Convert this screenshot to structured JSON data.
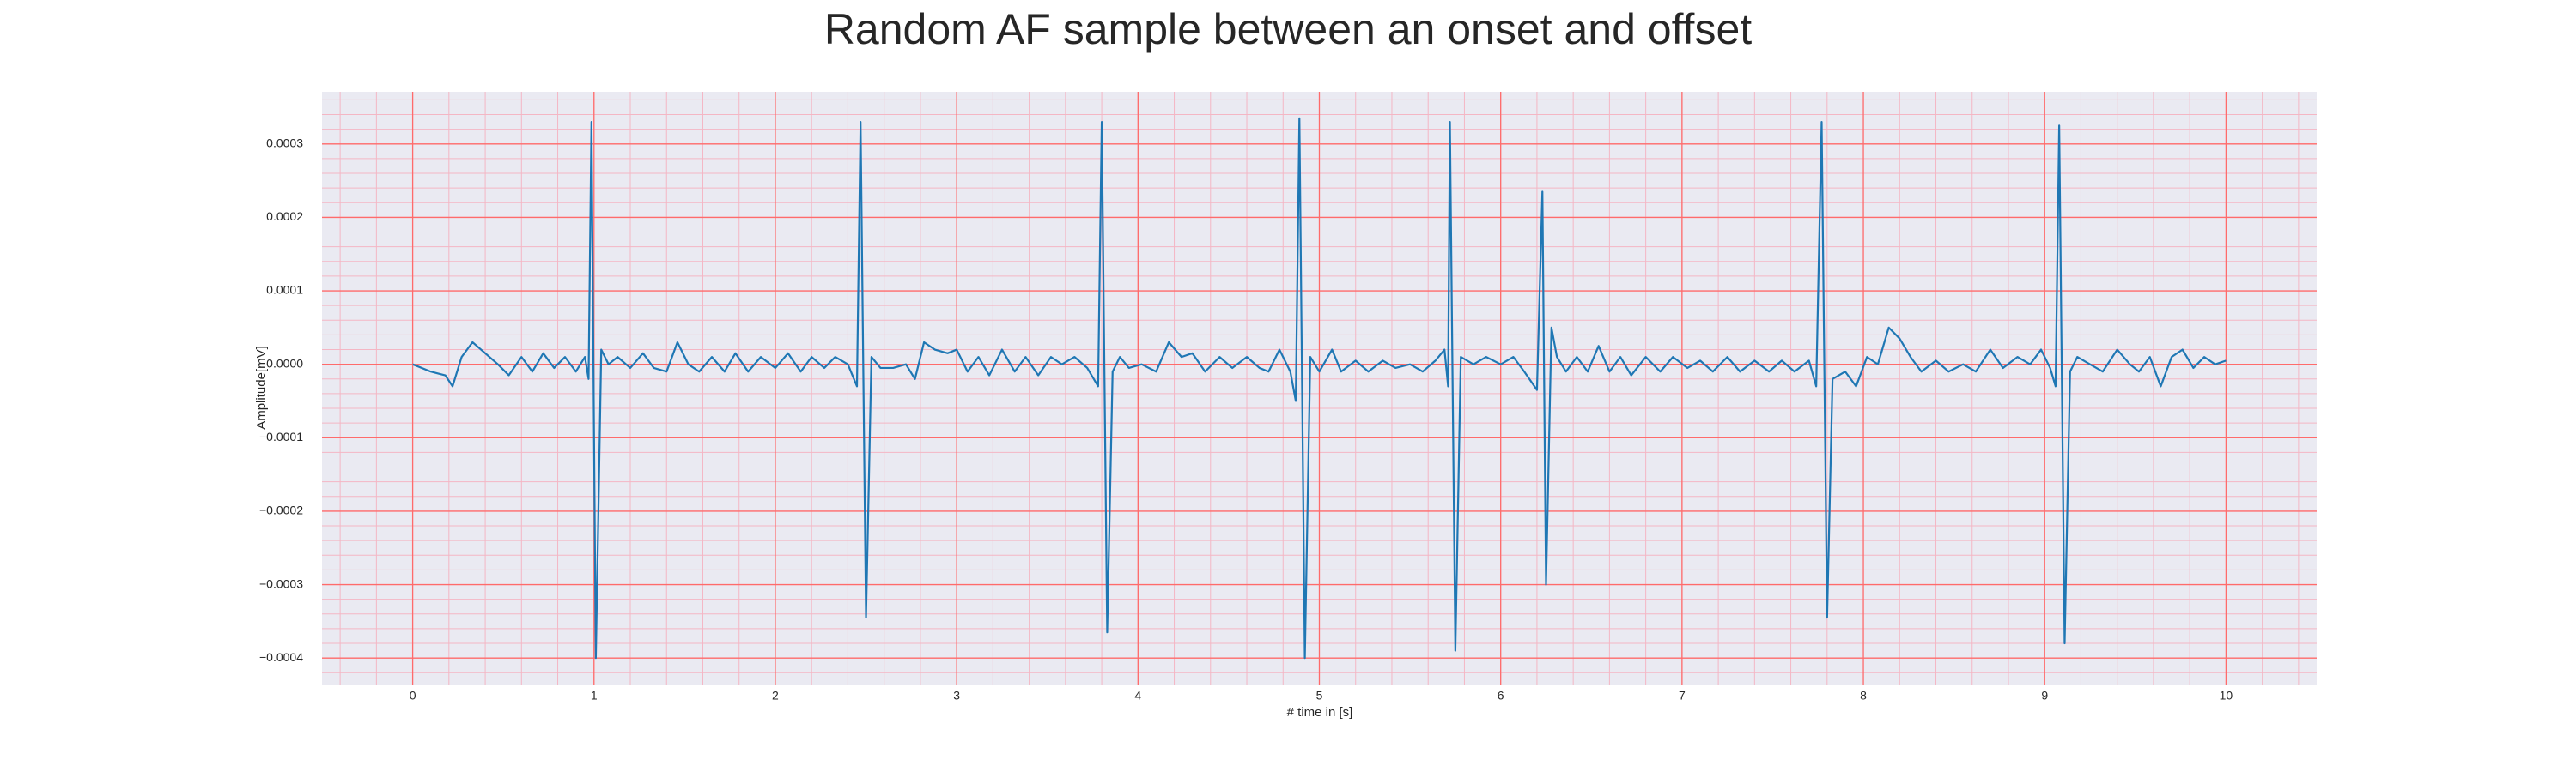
{
  "chart_data": {
    "type": "line",
    "title": "Random AF sample between an onset and offset",
    "xlabel": "# time in [s]",
    "ylabel": "Amplitude[mV]",
    "xlim": [
      -0.5,
      10.5
    ],
    "xticks": [
      0,
      1,
      2,
      3,
      4,
      5,
      6,
      7,
      8,
      9,
      10
    ],
    "ylim": [
      -0.000436,
      0.000371
    ],
    "yticks": [
      {
        "value": -0.0004,
        "label": "−0.0004"
      },
      {
        "value": -0.0003,
        "label": "−0.0003"
      },
      {
        "value": -0.0002,
        "label": "−0.0002"
      },
      {
        "value": -0.0001,
        "label": "−0.0001"
      },
      {
        "value": 0,
        "label": "0.0000"
      },
      0.0001,
      0.0002,
      0.0003
    ],
    "grid": true,
    "minor_grid": true,
    "grid_color": "#ff6b6b",
    "minor_grid_color": "#f4b6c4",
    "background": "#eaeaf2",
    "x": [
      0,
      0.1,
      0.18,
      0.22,
      0.27,
      0.33,
      0.4,
      0.47,
      0.53,
      0.6,
      0.66,
      0.72,
      0.78,
      0.84,
      0.9,
      0.95,
      0.97,
      0.986,
      1.01,
      1.04,
      1.08,
      1.13,
      1.2,
      1.27,
      1.33,
      1.4,
      1.46,
      1.52,
      1.58,
      1.65,
      1.72,
      1.78,
      1.85,
      1.92,
      2.0,
      2.07,
      2.14,
      2.2,
      2.27,
      2.33,
      2.4,
      2.45,
      2.47,
      2.5,
      2.53,
      2.58,
      2.65,
      2.72,
      2.77,
      2.82,
      2.88,
      2.95,
      3.0,
      3.06,
      3.12,
      3.18,
      3.25,
      3.32,
      3.38,
      3.45,
      3.52,
      3.58,
      3.65,
      3.72,
      3.78,
      3.8,
      3.83,
      3.86,
      3.9,
      3.95,
      4.02,
      4.1,
      4.17,
      4.24,
      4.3,
      4.37,
      4.45,
      4.52,
      4.6,
      4.67,
      4.72,
      4.78,
      4.84,
      4.87,
      4.89,
      4.92,
      4.95,
      5.0,
      5.07,
      5.12,
      5.2,
      5.27,
      5.35,
      5.42,
      5.5,
      5.57,
      5.64,
      5.69,
      5.71,
      5.72,
      5.75,
      5.78,
      5.85,
      5.92,
      6.0,
      6.07,
      6.13,
      6.2,
      6.23,
      6.25,
      6.28,
      6.31,
      6.36,
      6.42,
      6.48,
      6.54,
      6.6,
      6.66,
      6.72,
      6.8,
      6.88,
      6.95,
      7.03,
      7.1,
      7.17,
      7.25,
      7.32,
      7.4,
      7.48,
      7.55,
      7.62,
      7.7,
      7.74,
      7.77,
      7.8,
      7.83,
      7.9,
      7.96,
      8.02,
      8.08,
      8.14,
      8.2,
      8.26,
      8.32,
      8.4,
      8.47,
      8.55,
      8.62,
      8.7,
      8.77,
      8.85,
      8.92,
      8.98,
      9.03,
      9.06,
      9.08,
      9.11,
      9.14,
      9.18,
      9.25,
      9.32,
      9.4,
      9.47,
      9.52,
      9.58,
      9.64,
      9.7,
      9.76,
      9.82,
      9.88,
      9.94,
      10.0
    ],
    "series": [
      {
        "color": "#1f77b4",
        "values": [
          0,
          -1e-05,
          -1.5e-05,
          -3e-05,
          1e-05,
          3e-05,
          1.5e-05,
          0,
          -1.5e-05,
          1e-05,
          -1e-05,
          1.5e-05,
          -5e-06,
          1e-05,
          -1e-05,
          1e-05,
          -2e-05,
          0.00033,
          -0.0004,
          2e-05,
          0,
          1e-05,
          -5e-06,
          1.5e-05,
          -5e-06,
          -1e-05,
          3e-05,
          0,
          -1e-05,
          1e-05,
          -1e-05,
          1.5e-05,
          -1e-05,
          1e-05,
          -5e-06,
          1.5e-05,
          -1e-05,
          1e-05,
          -5e-06,
          1e-05,
          0,
          -3e-05,
          0.00033,
          -0.000345,
          1e-05,
          -5e-06,
          -5e-06,
          0,
          -2e-05,
          3e-05,
          2e-05,
          1.5e-05,
          2e-05,
          -1e-05,
          1e-05,
          -1.5e-05,
          2e-05,
          -1e-05,
          1e-05,
          -1.5e-05,
          1e-05,
          0,
          1e-05,
          -5e-06,
          -3e-05,
          0.00033,
          -0.000365,
          -1e-05,
          1e-05,
          -5e-06,
          0,
          -1e-05,
          3e-05,
          1e-05,
          1.5e-05,
          -1e-05,
          1e-05,
          -5e-06,
          1e-05,
          -5e-06,
          -1e-05,
          2e-05,
          -1e-05,
          -5e-05,
          0.000335,
          -0.0004,
          1e-05,
          -1e-05,
          2e-05,
          -1e-05,
          5e-06,
          -1e-05,
          5e-06,
          -5e-06,
          0,
          -1e-05,
          5e-06,
          2e-05,
          -3e-05,
          0.00033,
          -0.00039,
          1e-05,
          0,
          1e-05,
          0,
          1e-05,
          -1e-05,
          -3.5e-05,
          0.000235,
          -0.0003,
          5e-05,
          1e-05,
          -1e-05,
          1e-05,
          -1e-05,
          2.5e-05,
          -1e-05,
          1e-05,
          -1.5e-05,
          1e-05,
          -1e-05,
          1e-05,
          -5e-06,
          5e-06,
          -1e-05,
          1e-05,
          -1e-05,
          5e-06,
          -1e-05,
          5e-06,
          -1e-05,
          5e-06,
          -3e-05,
          0.00033,
          -0.000345,
          -2e-05,
          -1e-05,
          -3e-05,
          1e-05,
          0,
          5e-05,
          3.5e-05,
          1e-05,
          -1e-05,
          5e-06,
          -1e-05,
          0,
          -1e-05,
          2e-05,
          -5e-06,
          1e-05,
          0,
          2e-05,
          -5e-06,
          -3e-05,
          0.000325,
          -0.00038,
          -1e-05,
          1e-05,
          0,
          -1e-05,
          2e-05,
          0,
          -1e-05,
          1e-05,
          -3e-05,
          1e-05,
          2e-05,
          -5e-06,
          1e-05,
          0,
          5e-06
        ]
      }
    ]
  }
}
